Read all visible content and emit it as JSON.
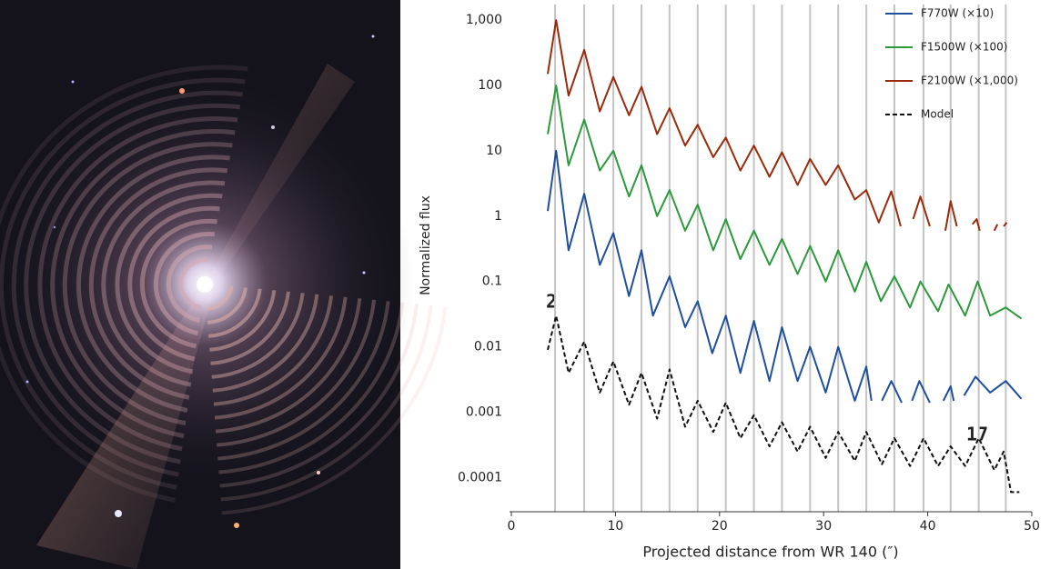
{
  "chart_data": {
    "type": "line",
    "yscale": "log",
    "ylabel": "Normalized flux",
    "xlabel": "Projected distance from WR 140 (″)",
    "xlim": [
      0,
      50
    ],
    "xticks": [
      0,
      10,
      20,
      30,
      40,
      50
    ],
    "ylim": [
      3e-05,
      2000
    ],
    "yticks": [
      0.0001,
      0.001,
      0.01,
      0.1,
      1,
      10,
      100,
      {
        "value": 1000,
        "label": "1,000"
      }
    ],
    "ring_lines": [
      4.2,
      7.0,
      9.8,
      12.5,
      15.2,
      17.9,
      20.6,
      23.3,
      26.0,
      28.7,
      31.4,
      34.1,
      36.8,
      39.6,
      42.2,
      44.9,
      47.5
    ],
    "annotations": [
      "2",
      "17"
    ],
    "series": [
      {
        "name": "F770W (×10)",
        "color": "#1f4e9c",
        "dash": false,
        "x": [
          3.5,
          4.3,
          5.5,
          7.0,
          8.5,
          9.8,
          11.3,
          12.5,
          13.6,
          15.2,
          16.7,
          17.9,
          19.3,
          20.6,
          22.0,
          23.3,
          24.8,
          26.0,
          27.5,
          28.7,
          30.2,
          31.4,
          33.0,
          34.1,
          34.6,
          35.0,
          35.6,
          36.5,
          37.5,
          37.9,
          38.5,
          39.2,
          40.2,
          40.6,
          41.5,
          42.2,
          42.5,
          43.0,
          43.5,
          44.6,
          46.0,
          47.5,
          49.0
        ],
        "values": [
          1.2,
          10,
          0.3,
          2.2,
          0.18,
          0.55,
          0.06,
          0.3,
          0.03,
          0.12,
          0.02,
          0.05,
          0.008,
          0.03,
          0.004,
          0.025,
          0.003,
          0.02,
          0.003,
          0.01,
          0.002,
          0.01,
          0.0015,
          0.005,
          0.0015,
          null,
          0.0015,
          0.003,
          0.0014,
          null,
          0.0015,
          0.003,
          0.0014,
          null,
          0.0015,
          0.0025,
          0.0015,
          null,
          0.0018,
          0.0035,
          0.002,
          0.003,
          0.0016
        ]
      },
      {
        "name": "F1500W (×100)",
        "color": "#2a9a3a",
        "dash": false,
        "x": [
          3.5,
          4.3,
          5.5,
          7.0,
          8.5,
          9.8,
          11.3,
          12.5,
          14.0,
          15.2,
          16.7,
          17.9,
          19.4,
          20.6,
          22.0,
          23.3,
          24.8,
          26.0,
          27.5,
          28.7,
          30.2,
          31.4,
          33.0,
          34.1,
          35.5,
          36.8,
          38.3,
          39.3,
          41.0,
          42.0,
          43.6,
          44.8,
          46.0,
          47.5,
          49.0
        ],
        "values": [
          18,
          100,
          6,
          30,
          5,
          10,
          2,
          6,
          1,
          2.5,
          0.6,
          1.5,
          0.3,
          0.9,
          0.22,
          0.6,
          0.18,
          0.45,
          0.13,
          0.35,
          0.1,
          0.3,
          0.07,
          0.2,
          0.05,
          0.12,
          0.04,
          0.1,
          0.035,
          0.09,
          0.03,
          0.1,
          0.03,
          0.04,
          0.027
        ]
      },
      {
        "name": "F2100W (×1,000)",
        "color": "#9b2a0a",
        "dash": false,
        "x": [
          3.5,
          4.3,
          5.5,
          7.0,
          8.5,
          9.8,
          11.3,
          12.5,
          14.0,
          15.2,
          16.7,
          17.9,
          19.4,
          20.6,
          22.0,
          23.3,
          24.8,
          26.0,
          27.5,
          28.7,
          30.2,
          31.4,
          33.0,
          34.1,
          35.3,
          36.5,
          37.4,
          37.6,
          38.6,
          39.3,
          40.2,
          40.6,
          41.7,
          42.2,
          42.8,
          43.5,
          44.3,
          44.7,
          45.0,
          45.8,
          46.4,
          46.7,
          47.0,
          47.3,
          47.6
        ],
        "values": [
          150,
          1000,
          70,
          350,
          40,
          135,
          35,
          95,
          18,
          45,
          12,
          25,
          8,
          16,
          5,
          12,
          4,
          9.5,
          3,
          7.5,
          3,
          6,
          1.8,
          2.5,
          0.8,
          2.4,
          0.7,
          null,
          0.9,
          2,
          0.7,
          null,
          0.6,
          1.7,
          0.7,
          null,
          0.75,
          0.9,
          0.6,
          null,
          0.6,
          0.75,
          null,
          0.7,
          0.8
        ]
      },
      {
        "name": "Model",
        "color": "#111111",
        "dash": true,
        "x": [
          3.5,
          4.3,
          5.5,
          7.0,
          8.5,
          9.8,
          11.3,
          12.5,
          14.0,
          15.2,
          16.7,
          17.9,
          19.4,
          20.6,
          22.0,
          23.3,
          24.8,
          26.0,
          27.5,
          28.7,
          30.2,
          31.4,
          33.0,
          34.1,
          35.6,
          36.8,
          38.3,
          39.6,
          41.0,
          42.2,
          43.6,
          44.9,
          46.4,
          47.3,
          48.0,
          48.8
        ],
        "values": [
          0.009,
          0.03,
          0.004,
          0.012,
          0.002,
          0.006,
          0.0013,
          0.004,
          0.0008,
          0.0045,
          0.0006,
          0.0015,
          0.0005,
          0.0014,
          0.0004,
          0.0009,
          0.0003,
          0.0007,
          0.00025,
          0.0006,
          0.0002,
          0.0005,
          0.00018,
          0.0005,
          0.00016,
          0.0004,
          0.00015,
          0.0004,
          0.00015,
          0.0003,
          0.00015,
          0.0004,
          0.00013,
          0.00025,
          6e-05,
          6e-05
        ]
      }
    ]
  }
}
